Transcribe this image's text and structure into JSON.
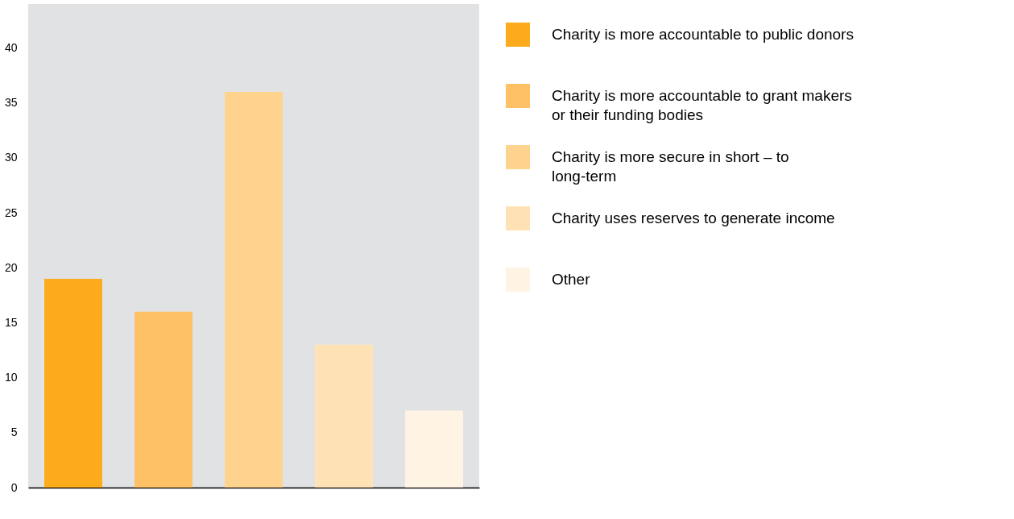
{
  "chart_data": {
    "type": "bar",
    "categories": [
      null,
      null,
      null,
      null,
      null
    ],
    "series": [
      {
        "name": "Charity is more accountable to public donors",
        "color": "#fbab1b",
        "values": [
          19,
          null,
          null,
          null,
          null
        ]
      },
      {
        "name": "Charity is more accountable to grant makers or their funding bodies",
        "color": "#fec166",
        "values": [
          null,
          16,
          null,
          null,
          null
        ]
      },
      {
        "name": "Charity is more secure in short – to long-term",
        "color": "#fed38e",
        "values": [
          null,
          null,
          36,
          null,
          null
        ]
      },
      {
        "name": "Charity uses reserves to generate income",
        "color": "#fee2b6",
        "values": [
          null,
          null,
          null,
          13,
          null
        ]
      },
      {
        "name": "Other",
        "color": "#fff3e3",
        "values": [
          null,
          null,
          null,
          null,
          7
        ]
      }
    ],
    "ylim": [
      0,
      44
    ],
    "yticks": [
      0,
      5,
      10,
      15,
      20,
      25,
      30,
      35,
      40
    ],
    "grid": false,
    "legend": "right",
    "tick_labels": "y"
  }
}
